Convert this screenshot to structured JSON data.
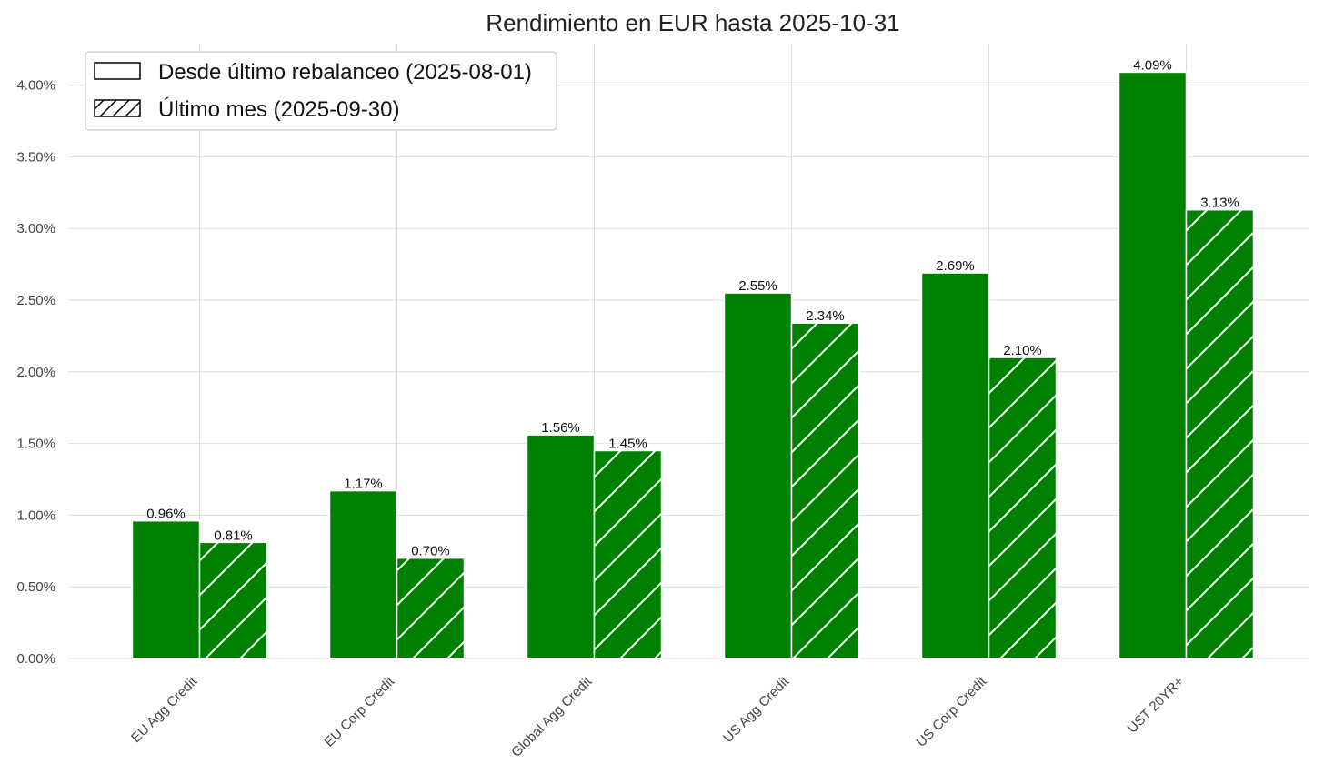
{
  "chart_data": {
    "type": "bar",
    "title": "Rendimiento en EUR hasta 2025-10-31",
    "xlabel": "",
    "ylabel": "",
    "ylim": [
      0,
      0.043
    ],
    "yticks": [
      "0.00%",
      "0.50%",
      "1.00%",
      "1.50%",
      "2.00%",
      "2.50%",
      "3.00%",
      "3.50%",
      "4.00%"
    ],
    "categories": [
      "EU Agg Credit",
      "EU Corp Credit",
      "Global Agg Credit",
      "US Agg Credit",
      "US Corp Credit",
      "UST 20YR+"
    ],
    "series": [
      {
        "name": "Desde último rebalanceo (2025-08-01)",
        "values": [
          0.0096,
          0.0117,
          0.0156,
          0.0255,
          0.0269,
          0.0409
        ],
        "labels": [
          "0.96%",
          "1.17%",
          "1.56%",
          "2.55%",
          "2.69%",
          "4.09%"
        ],
        "hatch": false
      },
      {
        "name": "Último mes (2025-09-30)",
        "values": [
          0.0081,
          0.007,
          0.0145,
          0.0234,
          0.021,
          0.0313
        ],
        "labels": [
          "0.81%",
          "0.70%",
          "1.45%",
          "2.34%",
          "2.10%",
          "3.13%"
        ],
        "hatch": true
      }
    ],
    "legend_position": "top-left",
    "grid": true,
    "colors": {
      "bar": "#008000",
      "grid": "#dddddd",
      "text": "#444444"
    }
  }
}
